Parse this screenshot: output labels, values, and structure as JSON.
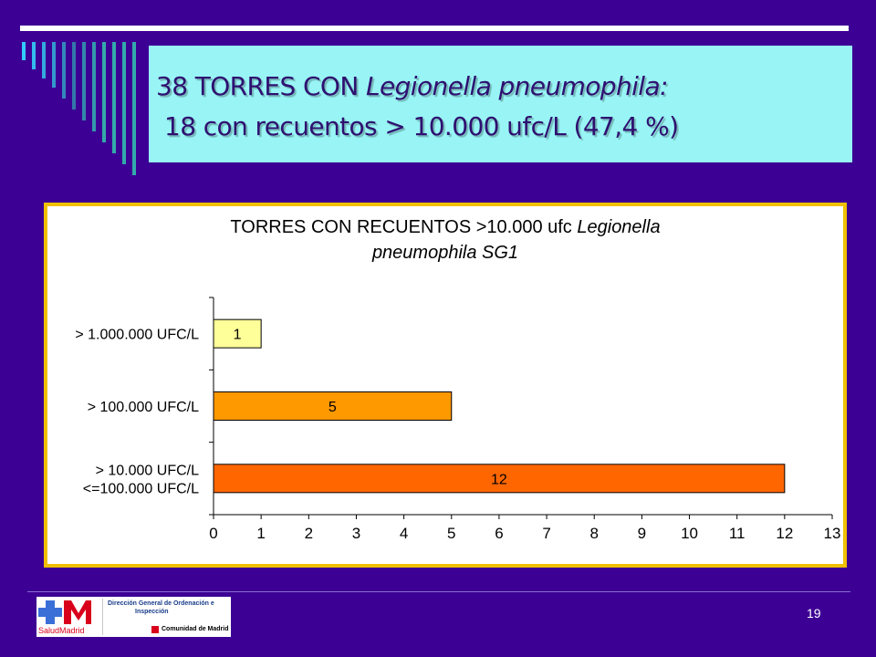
{
  "slide": {
    "title_line1_a": "38 TORRES CON ",
    "title_line1_b": "Legionella pneumophila:",
    "title_line2": "18 con recuentos > 10.000 ufc/L (47,4 %)",
    "page_number": "19"
  },
  "logo": {
    "brand": "SaludMadrid",
    "org_line1": "Dirección General de Ordenación e",
    "org_line2": "Inspección",
    "region": "Comunidad de Madrid"
  },
  "colors": {
    "background": "#3c0094",
    "title_box": "#99f5f5",
    "frame": "#f0c000",
    "bar1": "#ffff99",
    "bar2": "#ff9900",
    "bar3": "#ff6600"
  },
  "chart_data": {
    "type": "bar",
    "orientation": "horizontal",
    "title_a": "TORRES CON RECUENTOS  >10.000 ufc ",
    "title_b": "Legionella",
    "title_line2": "pneumophila SG1",
    "categories": [
      [
        "> 1.000.000 UFC/L"
      ],
      [
        "> 100.000 UFC/L"
      ],
      [
        "> 10.000 UFC/L",
        "<=100.000 UFC/L"
      ]
    ],
    "values": [
      1,
      5,
      12
    ],
    "data_labels": [
      "1",
      "5",
      "12"
    ],
    "bar_colors": [
      "#ffff99",
      "#ff9900",
      "#ff6600"
    ],
    "xlim": [
      0,
      13
    ],
    "xticks": [
      "0",
      "1",
      "2",
      "3",
      "4",
      "5",
      "6",
      "7",
      "8",
      "9",
      "10",
      "11",
      "12",
      "13"
    ],
    "grid": false,
    "legend": "none"
  }
}
